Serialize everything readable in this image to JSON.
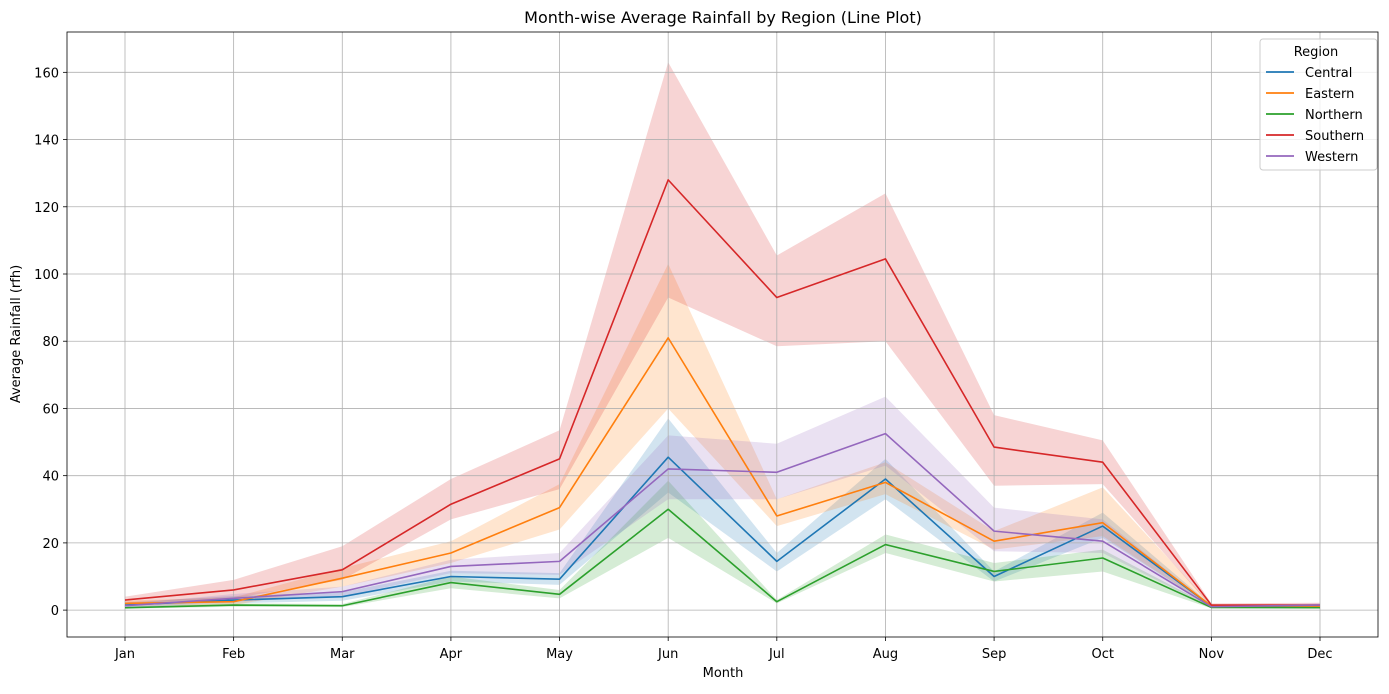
{
  "chart_data": {
    "type": "line",
    "title": "Month-wise Average Rainfall by Region (Line Plot)",
    "xlabel": "Month",
    "ylabel": "Average Rainfall (rfh)",
    "categories": [
      "Jan",
      "Feb",
      "Mar",
      "Apr",
      "May",
      "Jun",
      "Jul",
      "Aug",
      "Sep",
      "Oct",
      "Nov",
      "Dec"
    ],
    "ylim": [
      -8,
      172
    ],
    "yticks": [
      0,
      20,
      40,
      60,
      80,
      100,
      120,
      140,
      160
    ],
    "grid": true,
    "legend": {
      "title": "Region",
      "placement": "top-right"
    },
    "series": [
      {
        "name": "Central",
        "color": "#1f77b4",
        "values": [
          1.5,
          3.0,
          4.0,
          10.0,
          9.2,
          45.5,
          14.5,
          39.0,
          10.0,
          25.0,
          1.2,
          1.2
        ],
        "lower": [
          0.8,
          2.0,
          2.8,
          8.5,
          7.5,
          35.0,
          11.5,
          33.0,
          8.5,
          21.5,
          0.9,
          0.9
        ],
        "upper": [
          2.3,
          4.2,
          5.3,
          11.7,
          11.0,
          57.0,
          17.0,
          45.0,
          11.5,
          29.0,
          1.5,
          1.5
        ]
      },
      {
        "name": "Eastern",
        "color": "#ff7f0e",
        "values": [
          2.0,
          2.5,
          9.5,
          17.0,
          30.5,
          81.0,
          28.0,
          38.0,
          20.5,
          26.0,
          1.2,
          1.2
        ],
        "lower": [
          1.2,
          1.5,
          7.0,
          14.0,
          24.0,
          60.0,
          25.0,
          34.5,
          18.0,
          22.0,
          0.9,
          0.9
        ],
        "upper": [
          2.8,
          3.8,
          12.5,
          20.5,
          37.5,
          103.0,
          33.0,
          44.0,
          23.5,
          36.5,
          1.6,
          1.6
        ]
      },
      {
        "name": "Northern",
        "color": "#2ca02c",
        "values": [
          0.7,
          1.5,
          1.3,
          8.2,
          4.7,
          30.0,
          2.5,
          19.5,
          11.5,
          15.5,
          0.8,
          0.7
        ],
        "lower": [
          0.4,
          1.0,
          0.9,
          6.5,
          3.5,
          21.5,
          2.0,
          17.0,
          8.5,
          11.5,
          0.5,
          0.5
        ],
        "upper": [
          1.0,
          2.0,
          1.8,
          10.0,
          6.0,
          38.5,
          3.0,
          22.5,
          14.0,
          18.0,
          1.1,
          1.0
        ]
      },
      {
        "name": "Southern",
        "color": "#d62728",
        "values": [
          3.0,
          6.0,
          12.0,
          31.5,
          45.0,
          128.0,
          93.0,
          104.5,
          48.5,
          44.0,
          1.5,
          1.5
        ],
        "lower": [
          2.0,
          3.5,
          9.0,
          27.0,
          36.0,
          93.0,
          78.5,
          80.0,
          37.0,
          37.5,
          1.0,
          1.0
        ],
        "upper": [
          4.0,
          9.0,
          19.0,
          39.0,
          53.5,
          163.0,
          105.5,
          124.0,
          58.0,
          50.5,
          2.0,
          2.2
        ]
      },
      {
        "name": "Western",
        "color": "#9467bd",
        "values": [
          1.3,
          3.5,
          5.5,
          13.0,
          14.5,
          42.0,
          41.0,
          52.5,
          23.5,
          20.5,
          1.0,
          1.5
        ],
        "lower": [
          0.8,
          2.5,
          4.0,
          11.0,
          10.5,
          33.0,
          33.0,
          43.0,
          17.5,
          17.0,
          0.7,
          1.0
        ],
        "upper": [
          1.8,
          4.8,
          7.0,
          15.0,
          17.0,
          52.0,
          49.5,
          63.5,
          30.5,
          27.0,
          1.3,
          2.0
        ]
      }
    ]
  }
}
